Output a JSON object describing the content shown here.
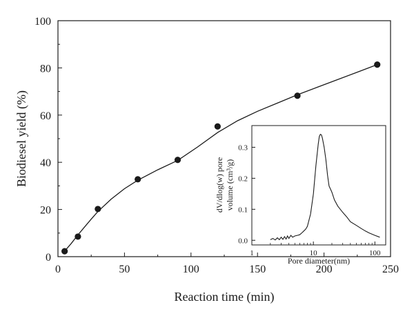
{
  "chart_data": [
    {
      "type": "scatter",
      "xlabel": "Reaction time (min)",
      "ylabel": "Biodiesel yield (%)",
      "xlim": [
        0,
        250
      ],
      "ylim": [
        0,
        100
      ],
      "xticks": [
        0,
        50,
        100,
        150,
        200,
        250
      ],
      "yticks": [
        0,
        20,
        40,
        60,
        80,
        100
      ],
      "grid": false,
      "series": [
        {
          "points": [
            [
              5,
              2.3
            ],
            [
              15,
              8.5
            ],
            [
              30,
              20.2
            ],
            [
              60,
              32.8
            ],
            [
              90,
              41
            ],
            [
              120,
              55.2
            ],
            [
              180,
              68.2
            ],
            [
              240,
              81.4
            ]
          ],
          "fit_curve": [
            [
              5,
              2.3
            ],
            [
              10,
              5.6
            ],
            [
              15,
              9.2
            ],
            [
              20,
              12.6
            ],
            [
              25,
              15.9
            ],
            [
              30,
              19.1
            ],
            [
              40,
              24.4
            ],
            [
              50,
              28.8
            ],
            [
              60,
              32.4
            ],
            [
              75,
              36.8
            ],
            [
              90,
              40.8
            ],
            [
              105,
              46.5
            ],
            [
              120,
              52.6
            ],
            [
              135,
              57.6
            ],
            [
              150,
              61.6
            ],
            [
              165,
              65.1
            ],
            [
              180,
              68.6
            ],
            [
              195,
              71.8
            ],
            [
              210,
              75
            ],
            [
              225,
              78.2
            ],
            [
              240,
              81.4
            ]
          ]
        }
      ]
    },
    {
      "type": "line",
      "inset": true,
      "xlabel": "Pore diameter(nm)",
      "ylabel_lines": [
        "dV/dlog(w) pore",
        "volume (cm³/g)"
      ],
      "x_scale": "log",
      "xlim": [
        1,
        150
      ],
      "ylim": [
        -0.015,
        0.37
      ],
      "xticks": [
        1,
        10,
        100
      ],
      "yticks": [
        0.0,
        0.1,
        0.2,
        0.3
      ],
      "ytick_labels": [
        "0.0",
        "0.1",
        "0.2",
        "0.3"
      ],
      "series": [
        {
          "x": [
            2,
            2.2,
            2.4,
            2.6,
            2.8,
            3,
            3.2,
            3.4,
            3.6,
            3.8,
            4,
            4.3,
            4.6,
            5,
            5.5,
            6,
            6.5,
            7,
            7.5,
            8,
            9,
            10,
            11,
            12,
            12.5,
            13,
            13.5,
            14,
            15,
            16,
            17,
            18,
            19,
            20,
            22,
            25,
            30,
            35,
            40,
            50,
            60,
            70,
            80,
            100,
            120
          ],
          "y": [
            0.002,
            0.006,
            0.001,
            0.008,
            0.002,
            0.01,
            0.003,
            0.012,
            0.004,
            0.014,
            0.006,
            0.016,
            0.01,
            0.014,
            0.016,
            0.018,
            0.024,
            0.03,
            0.036,
            0.045,
            0.085,
            0.15,
            0.24,
            0.31,
            0.335,
            0.342,
            0.34,
            0.33,
            0.3,
            0.26,
            0.21,
            0.175,
            0.165,
            0.155,
            0.13,
            0.11,
            0.09,
            0.075,
            0.06,
            0.048,
            0.038,
            0.03,
            0.024,
            0.016,
            0.01
          ]
        }
      ]
    }
  ]
}
